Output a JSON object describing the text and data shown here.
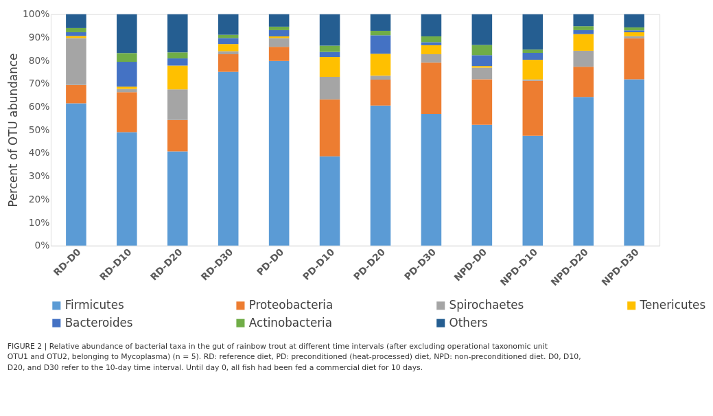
{
  "chart_data": {
    "type": "bar",
    "stacked": true,
    "ylabel": "Percent of OTU abundance",
    "categories": [
      "RD-D0",
      "RD-D10",
      "RD-D20",
      "RD-D30",
      "PD-D0",
      "PD-D10",
      "PD-D20",
      "PD-D30",
      "NPD-D0",
      "NPD-D10",
      "NPD-D20",
      "NPD-D30"
    ],
    "series": [
      {
        "name": "Firmicutes",
        "color": "#5b9bd5",
        "values": [
          61.5,
          49.0,
          40.7,
          75.1,
          79.8,
          38.6,
          60.5,
          56.9,
          52.2,
          47.5,
          64.2,
          71.9
        ]
      },
      {
        "name": "Proteobacteria",
        "color": "#ed7d31",
        "values": [
          7.9,
          17.3,
          13.6,
          7.6,
          6.1,
          24.6,
          11.2,
          22.2,
          19.7,
          23.7,
          13.1,
          17.7
        ]
      },
      {
        "name": "Spirochaetes",
        "color": "#a5a5a5",
        "values": [
          20.3,
          1.4,
          13.2,
          1.3,
          3.8,
          9.7,
          1.7,
          3.6,
          5.0,
          0.6,
          6.9,
          0.9
        ]
      },
      {
        "name": "Tenericutes",
        "color": "#ffc000",
        "values": [
          0.9,
          1.0,
          10.3,
          3.1,
          0.7,
          8.6,
          9.5,
          3.9,
          0.7,
          8.5,
          7.2,
          1.7
        ]
      },
      {
        "name": "Bacteroides",
        "color": "#4472c4",
        "values": [
          1.6,
          10.7,
          3.1,
          2.6,
          2.7,
          2.2,
          8.0,
          1.3,
          4.7,
          3.0,
          1.7,
          0.8
        ]
      },
      {
        "name": "Actinobacteria",
        "color": "#70ad47",
        "values": [
          1.8,
          3.8,
          2.6,
          1.4,
          1.5,
          2.7,
          1.9,
          2.5,
          4.4,
          1.4,
          1.7,
          1.3
        ]
      },
      {
        "name": "Others",
        "color": "#255e91",
        "values": [
          6.0,
          16.8,
          16.5,
          8.9,
          5.4,
          13.6,
          7.2,
          9.6,
          13.3,
          15.3,
          5.2,
          5.7
        ]
      }
    ],
    "ylim": [
      0,
      100
    ],
    "yticks": [
      {
        "value": 0,
        "label": "0%"
      },
      {
        "value": 10,
        "label": "10%"
      },
      {
        "value": 20,
        "label": "20%"
      },
      {
        "value": 30,
        "label": "30%"
      },
      {
        "value": 40,
        "label": "40%"
      },
      {
        "value": 50,
        "label": "50%"
      },
      {
        "value": 60,
        "label": "60%"
      },
      {
        "value": 70,
        "label": "70%"
      },
      {
        "value": 80,
        "label": "80%"
      },
      {
        "value": 90,
        "label": "90%"
      },
      {
        "value": 100,
        "label": "100%"
      }
    ],
    "grid": false,
    "legend": "bottom",
    "annotations": [
      "FIGURE 2 | Relative abundance of bacterial taxa in the gut of rainbow trout at different time intervals (after excluding operational taxonomic unit OTU1 and OTU2, belonging to Mycoplasma) (n = 5). RD: reference diet, PD: preconditioned (heat-processed) diet, NPD: non-preconditioned diet. D0, D10, D20, and D30 refer to the 10-day time interval. Until day 0, all fish had been fed a commercial diet for 10 days."
    ]
  }
}
